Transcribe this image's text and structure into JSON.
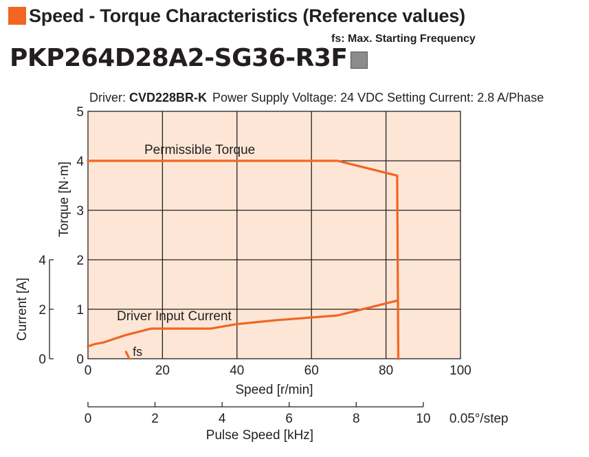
{
  "heading": {
    "title": "Speed - Torque Characteristics (Reference values)",
    "accent": "#f26522"
  },
  "fs_note": "fs: Max. Starting Frequency",
  "model": "PKP264D28A2-SG36-R3F",
  "driver_line": {
    "driver_label": "Driver:",
    "driver_name": "CVD228BR-K",
    "rest": "Power Supply Voltage: 24 VDC  Setting Current: 2.8 A/Phase"
  },
  "chart_data": {
    "type": "line",
    "background": "#fde6d5",
    "line_color": "#f26522",
    "x": {
      "label": "Speed [r/min]",
      "range": [
        0,
        100
      ],
      "ticks": [
        0,
        20,
        40,
        60,
        80,
        100
      ]
    },
    "x2": {
      "label": "Pulse Speed [kHz]",
      "range": [
        0,
        11.11
      ],
      "ticks": [
        0,
        2,
        4,
        6,
        8,
        10
      ],
      "unit_note": "0.05°/step"
    },
    "y_torque": {
      "label": "Torque [N·m]",
      "range": [
        0,
        5
      ],
      "ticks": [
        0,
        1,
        2,
        3,
        4,
        5
      ]
    },
    "y_current": {
      "label": "Current [A]",
      "range": [
        0,
        4
      ],
      "ticks": [
        0,
        2,
        4
      ]
    },
    "series": [
      {
        "name": "Permissible Torque",
        "axis": "torque",
        "points": [
          [
            0,
            4.0
          ],
          [
            67,
            4.0
          ],
          [
            83,
            3.7
          ],
          [
            83.3,
            0
          ]
        ]
      },
      {
        "name": "Driver Input Current",
        "axis": "current",
        "points": [
          [
            0,
            0.5
          ],
          [
            2,
            0.6
          ],
          [
            4,
            0.65
          ],
          [
            6,
            0.75
          ],
          [
            10,
            0.95
          ],
          [
            17,
            1.22
          ],
          [
            33,
            1.22
          ],
          [
            40,
            1.4
          ],
          [
            50,
            1.55
          ],
          [
            67,
            1.75
          ],
          [
            83,
            2.35
          ]
        ]
      }
    ],
    "annotations": [
      {
        "text": "fs",
        "segment": [
          [
            10.2,
            0.28
          ],
          [
            11.1,
            0
          ]
        ]
      }
    ]
  }
}
